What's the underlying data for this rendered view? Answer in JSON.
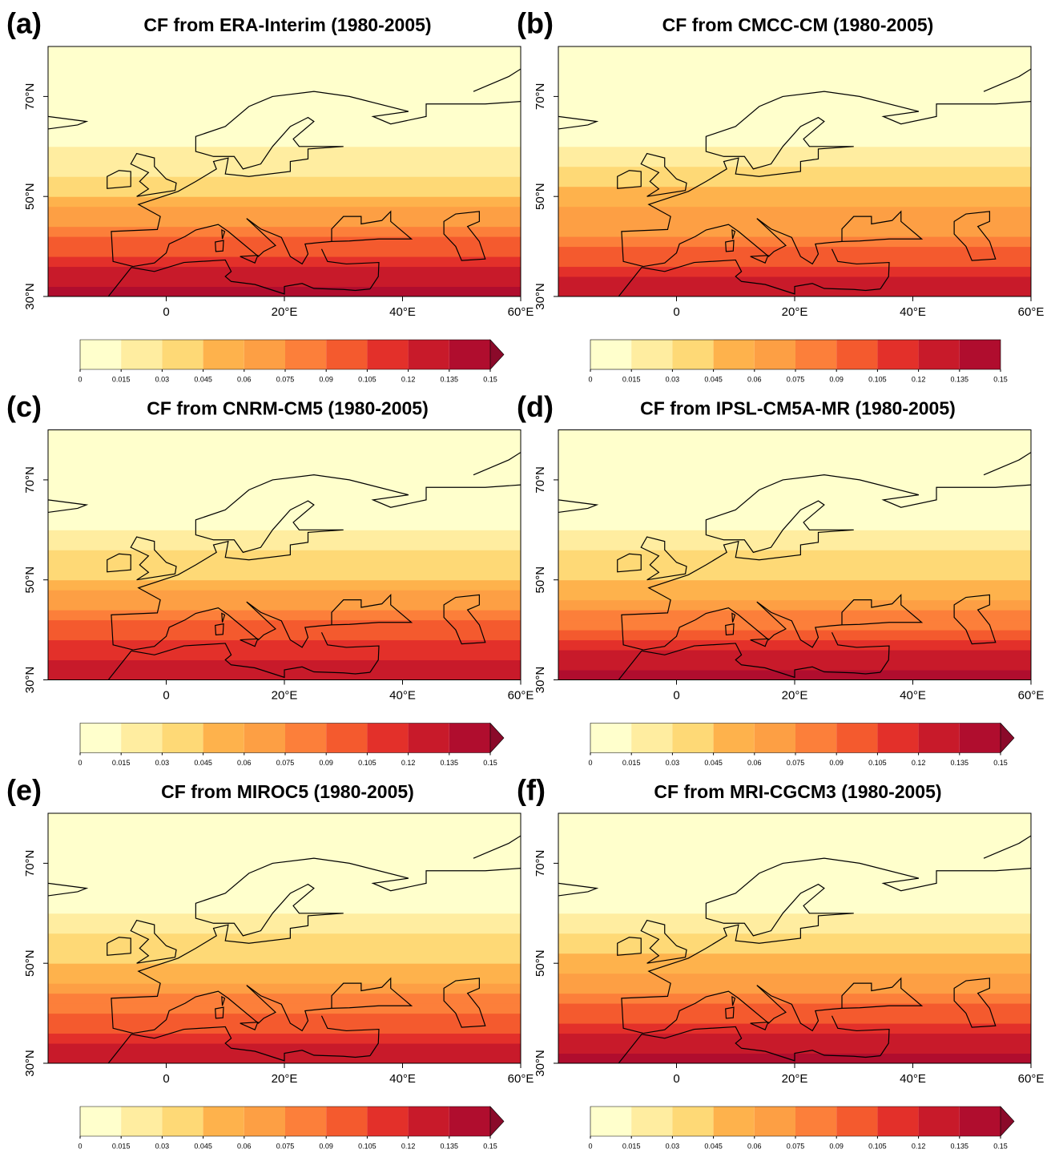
{
  "panels": [
    {
      "label": "(a)",
      "title": "CF from ERA-Interim (1980-2005)",
      "xlim": [
        -20,
        60
      ],
      "ylim": [
        30,
        80
      ],
      "xticks": [
        0,
        {
          "value": 20,
          "label": "20°E"
        },
        {
          "value": 40,
          "label": "40°E"
        },
        {
          "value": 60,
          "label": "60°E"
        }
      ],
      "yticks": [
        {
          "value": 30,
          "label": "30°N"
        },
        {
          "value": 50,
          "label": "50°N"
        },
        {
          "value": 70,
          "label": "70°N"
        }
      ],
      "colorbar": {
        "ticks": [
          0,
          0.015,
          0.03,
          0.045,
          0.06,
          0.075,
          0.09,
          0.105,
          0.12,
          0.135,
          0.15
        ],
        "colors": [
          "#ffffcc",
          "#ffeda0",
          "#fed976",
          "#feb24c",
          "#fd9f44",
          "#fc7f3a",
          "#f45a2e",
          "#e3302a",
          "#c81a2a",
          "#b00d2e"
        ],
        "extend_color": "#8b0a2a"
      },
      "field": {
        "lat": [
          30,
          32,
          34,
          36,
          38,
          40,
          42,
          44,
          46,
          48,
          50,
          52,
          54,
          56,
          58,
          60
        ],
        "cf": [
          0.14,
          0.13,
          0.12,
          0.11,
          0.1,
          0.09,
          0.08,
          0.07,
          0.06,
          0.05,
          0.04,
          0.035,
          0.025,
          0.02,
          0.015,
          0.005
        ]
      }
    },
    {
      "label": "(b)",
      "title": "CF from CMCC-CM (1980-2005)",
      "xlim": [
        -20,
        60
      ],
      "ylim": [
        30,
        80
      ],
      "xticks": [
        0,
        {
          "value": 20,
          "label": "20°E"
        },
        {
          "value": 40,
          "label": "40°E"
        },
        {
          "value": 60,
          "label": "60°E"
        }
      ],
      "yticks": [
        {
          "value": 30,
          "label": "30°N"
        },
        {
          "value": 50,
          "label": "50°N"
        },
        {
          "value": 70,
          "label": "70°N"
        }
      ],
      "colorbar": {
        "ticks": [
          0,
          0.015,
          0.03,
          0.045,
          0.06,
          0.075,
          0.09,
          0.105,
          0.12,
          0.135,
          0.15
        ],
        "colors": [
          "#ffffcc",
          "#ffeda0",
          "#fed976",
          "#feb24c",
          "#fd9f44",
          "#fc7f3a",
          "#f45a2e",
          "#e3302a",
          "#c81a2a",
          "#b00d2e"
        ]
      },
      "field": {
        "lat": [
          30,
          32,
          34,
          36,
          38,
          40,
          42,
          44,
          46,
          48,
          50,
          52,
          54,
          56,
          58,
          60
        ],
        "cf": [
          0.13,
          0.12,
          0.11,
          0.1,
          0.09,
          0.08,
          0.07,
          0.065,
          0.06,
          0.05,
          0.045,
          0.04,
          0.03,
          0.025,
          0.02,
          0.01
        ]
      }
    },
    {
      "label": "(c)",
      "title": "CF from CNRM-CM5 (1980-2005)",
      "xlim": [
        -20,
        60
      ],
      "ylim": [
        30,
        80
      ],
      "xticks": [
        0,
        {
          "value": 20,
          "label": "20°E"
        },
        {
          "value": 40,
          "label": "40°E"
        },
        {
          "value": 60,
          "label": "60°E"
        }
      ],
      "yticks": [
        {
          "value": 30,
          "label": "30°N"
        },
        {
          "value": 50,
          "label": "50°N"
        },
        {
          "value": 70,
          "label": "70°N"
        }
      ],
      "colorbar": {
        "ticks": [
          0,
          0.015,
          0.03,
          0.045,
          0.06,
          0.075,
          0.09,
          0.105,
          0.12,
          0.135,
          0.15
        ],
        "colors": [
          "#ffffcc",
          "#ffeda0",
          "#fed976",
          "#feb24c",
          "#fd9f44",
          "#fc7f3a",
          "#f45a2e",
          "#e3302a",
          "#c81a2a",
          "#b00d2e"
        ],
        "extend_color": "#8b0a2a"
      },
      "field": {
        "lat": [
          30,
          32,
          34,
          36,
          38,
          40,
          42,
          44,
          46,
          48,
          50,
          52,
          54,
          56,
          58,
          60
        ],
        "cf": [
          0.13,
          0.12,
          0.115,
          0.105,
          0.095,
          0.09,
          0.08,
          0.07,
          0.06,
          0.05,
          0.04,
          0.035,
          0.03,
          0.02,
          0.015,
          0.005
        ]
      }
    },
    {
      "label": "(d)",
      "title": "CF from IPSL-CM5A-MR (1980-2005)",
      "xlim": [
        -20,
        60
      ],
      "ylim": [
        30,
        80
      ],
      "xticks": [
        0,
        {
          "value": 20,
          "label": "20°E"
        },
        {
          "value": 40,
          "label": "40°E"
        },
        {
          "value": 60,
          "label": "60°E"
        }
      ],
      "yticks": [
        {
          "value": 30,
          "label": "30°N"
        },
        {
          "value": 50,
          "label": "50°N"
        },
        {
          "value": 70,
          "label": "70°N"
        }
      ],
      "colorbar": {
        "ticks": [
          0,
          0.015,
          0.03,
          0.045,
          0.06,
          0.075,
          0.09,
          0.105,
          0.12,
          0.135,
          0.15
        ],
        "colors": [
          "#ffffcc",
          "#ffeda0",
          "#fed976",
          "#feb24c",
          "#fd9f44",
          "#fc7f3a",
          "#f45a2e",
          "#e3302a",
          "#c81a2a",
          "#b00d2e"
        ],
        "extend_color": "#8b0a2a"
      },
      "field": {
        "lat": [
          30,
          32,
          34,
          36,
          38,
          40,
          42,
          44,
          46,
          48,
          50,
          52,
          54,
          56,
          58,
          60
        ],
        "cf": [
          0.14,
          0.13,
          0.12,
          0.105,
          0.095,
          0.085,
          0.075,
          0.065,
          0.055,
          0.05,
          0.04,
          0.035,
          0.03,
          0.02,
          0.015,
          0.005
        ]
      }
    },
    {
      "label": "(e)",
      "title": "CF from MIROC5 (1980-2005)",
      "xlim": [
        -20,
        60
      ],
      "ylim": [
        30,
        80
      ],
      "xticks": [
        0,
        {
          "value": 20,
          "label": "20°E"
        },
        {
          "value": 40,
          "label": "40°E"
        },
        {
          "value": 60,
          "label": "60°E"
        }
      ],
      "yticks": [
        {
          "value": 30,
          "label": "30°N"
        },
        {
          "value": 50,
          "label": "50°N"
        },
        {
          "value": 70,
          "label": "70°N"
        }
      ],
      "colorbar": {
        "ticks": [
          0,
          0.015,
          0.03,
          0.045,
          0.06,
          0.075,
          0.09,
          0.105,
          0.12,
          0.135,
          0.15
        ],
        "colors": [
          "#ffffcc",
          "#ffeda0",
          "#fed976",
          "#feb24c",
          "#fd9f44",
          "#fc7f3a",
          "#f45a2e",
          "#e3302a",
          "#c81a2a",
          "#b00d2e"
        ],
        "extend_color": "#8b0a2a"
      },
      "field": {
        "lat": [
          30,
          32,
          34,
          36,
          38,
          40,
          42,
          44,
          46,
          48,
          50,
          52,
          54,
          56,
          58,
          60
        ],
        "cf": [
          0.13,
          0.12,
          0.11,
          0.1,
          0.09,
          0.08,
          0.075,
          0.065,
          0.055,
          0.05,
          0.04,
          0.035,
          0.03,
          0.025,
          0.02,
          0.01
        ]
      }
    },
    {
      "label": "(f)",
      "title": "CF from MRI-CGCM3 (1980-2005)",
      "xlim": [
        -20,
        60
      ],
      "ylim": [
        30,
        80
      ],
      "xticks": [
        0,
        {
          "value": 20,
          "label": "20°E"
        },
        {
          "value": 40,
          "label": "40°E"
        },
        {
          "value": 60,
          "label": "60°E"
        }
      ],
      "yticks": [
        {
          "value": 30,
          "label": "30°N"
        },
        {
          "value": 50,
          "label": "50°N"
        },
        {
          "value": 70,
          "label": "70°N"
        }
      ],
      "colorbar": {
        "ticks": [
          0,
          0.015,
          0.03,
          0.045,
          0.06,
          0.075,
          0.09,
          0.105,
          0.12,
          0.135,
          0.15
        ],
        "colors": [
          "#ffffcc",
          "#ffeda0",
          "#fed976",
          "#feb24c",
          "#fd9f44",
          "#fc7f3a",
          "#f45a2e",
          "#e3302a",
          "#c81a2a",
          "#b00d2e"
        ],
        "extend_color": "#8b0a2a"
      },
      "field": {
        "lat": [
          30,
          32,
          34,
          36,
          38,
          40,
          42,
          44,
          46,
          48,
          50,
          52,
          54,
          56,
          58,
          60
        ],
        "cf": [
          0.14,
          0.13,
          0.12,
          0.11,
          0.1,
          0.09,
          0.08,
          0.07,
          0.06,
          0.05,
          0.045,
          0.035,
          0.03,
          0.025,
          0.02,
          0.01
        ]
      }
    }
  ]
}
